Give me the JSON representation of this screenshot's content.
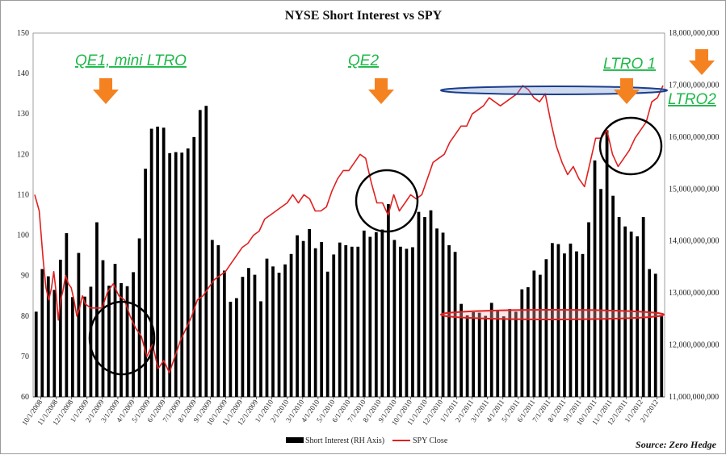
{
  "chart_data": {
    "type": "bar+line",
    "title": "NYSE Short Interest vs SPY",
    "source": "Source: Zero Hedge",
    "left_axis": {
      "ylim": [
        60,
        150
      ],
      "ticks": [
        "60",
        "70",
        "80",
        "90",
        "100",
        "110",
        "120",
        "130",
        "140",
        "150"
      ]
    },
    "right_axis": {
      "ylim": [
        11000000000,
        18000000000
      ],
      "ticks": [
        "11,000,000,000",
        "12,000,000,000",
        "13,000,000,000",
        "14,000,000,000",
        "15,000,000,000",
        "16,000,000,000",
        "17,000,000,000",
        "18,000,000,000"
      ]
    },
    "x_labels": [
      "10/1/2008",
      "11/1/2008",
      "12/1/2008",
      "1/1/2009",
      "2/1/2009",
      "3/1/2009",
      "4/1/2009",
      "5/1/2009",
      "6/1/2009",
      "7/1/2009",
      "8/1/2009",
      "9/1/2009",
      "10/1/2009",
      "11/1/2009",
      "12/1/2009",
      "1/1/2010",
      "2/1/2010",
      "3/1/2010",
      "4/1/2010",
      "5/1/2010",
      "6/1/2010",
      "7/1/2010",
      "8/1/2010",
      "9/1/2010",
      "10/1/2010",
      "11/1/2010",
      "12/1/2010",
      "1/1/2011",
      "2/1/2011",
      "3/1/2011",
      "4/1/2011",
      "5/1/2011",
      "6/1/2011",
      "7/1/2011",
      "8/1/2011",
      "9/1/2011",
      "10/1/2011",
      "11/1/2011",
      "12/1/2011",
      "1/1/2012",
      "2/1/2012"
    ],
    "series": [
      {
        "name": "Short Interest (RH Axis)",
        "axis": "right",
        "color": "#000000",
        "values": [
          12640000000,
          13460000000,
          13320000000,
          13060000000,
          13640000000,
          14150000000,
          12920000000,
          13770000000,
          12930000000,
          13120000000,
          14360000000,
          13630000000,
          13140000000,
          13560000000,
          13190000000,
          13130000000,
          13400000000,
          14050000000,
          15390000000,
          16160000000,
          16200000000,
          16180000000,
          15690000000,
          15710000000,
          15700000000,
          15780000000,
          16000000000,
          16520000000,
          16600000000,
          14020000000,
          13920000000,
          13430000000,
          12830000000,
          12900000000,
          13310000000,
          13480000000,
          13350000000,
          12840000000,
          13660000000,
          13510000000,
          13390000000,
          13550000000,
          13750000000,
          14110000000,
          14000000000,
          14230000000,
          13860000000,
          13980000000,
          13410000000,
          13740000000,
          13970000000,
          13920000000,
          13890000000,
          13890000000,
          14200000000,
          14080000000,
          14170000000,
          14220000000,
          14710000000,
          14020000000,
          13890000000,
          13850000000,
          13880000000,
          14560000000,
          14460000000,
          14590000000,
          14240000000,
          14160000000,
          13920000000,
          13790000000,
          12790000000,
          12570000000,
          12630000000,
          12620000000,
          12560000000,
          12810000000,
          12670000000,
          12550000000,
          12690000000,
          12640000000,
          13070000000,
          13110000000,
          13430000000,
          13350000000,
          13650000000,
          13960000000,
          13940000000,
          13760000000,
          13950000000,
          13800000000,
          13750000000,
          14360000000,
          15550000000,
          15000000000,
          16130000000,
          14870000000,
          14460000000,
          14280000000,
          14180000000,
          14090000000,
          14460000000,
          13460000000,
          13370000000,
          12550000000
        ]
      },
      {
        "name": "SPY Close",
        "axis": "left",
        "color": "#e02020",
        "points": [
          [
            0,
            110
          ],
          [
            0.8,
            106
          ],
          [
            1.5,
            94
          ],
          [
            2,
            87
          ],
          [
            2.5,
            84
          ],
          [
            3,
            87
          ],
          [
            3.4,
            91
          ],
          [
            3.8,
            86
          ],
          [
            4.2,
            79
          ],
          [
            4.6,
            84
          ],
          [
            5,
            86
          ],
          [
            5.5,
            90
          ],
          [
            6,
            88
          ],
          [
            6.5,
            87
          ],
          [
            7,
            84
          ],
          [
            7.5,
            80
          ],
          [
            8,
            82
          ],
          [
            8.5,
            85
          ],
          [
            9,
            83
          ],
          [
            10,
            82
          ],
          [
            11,
            82
          ],
          [
            12,
            82
          ],
          [
            13,
            86
          ],
          [
            14,
            88
          ],
          [
            15,
            85
          ],
          [
            16,
            84
          ],
          [
            17,
            80
          ],
          [
            18,
            77
          ],
          [
            19,
            75
          ],
          [
            20,
            70
          ],
          [
            21,
            73
          ],
          [
            22,
            67
          ],
          [
            23,
            69
          ],
          [
            24,
            66
          ],
          [
            25,
            70
          ],
          [
            26,
            74
          ],
          [
            27,
            77
          ],
          [
            28,
            80
          ],
          [
            29,
            84
          ],
          [
            30,
            85
          ],
          [
            31,
            87
          ],
          [
            32,
            89
          ],
          [
            33,
            90
          ],
          [
            34,
            91
          ],
          [
            35,
            93
          ],
          [
            36,
            95
          ],
          [
            37,
            97
          ],
          [
            38,
            98
          ],
          [
            39,
            100
          ],
          [
            40,
            101
          ],
          [
            41,
            104
          ],
          [
            42,
            105
          ],
          [
            43,
            106
          ],
          [
            44,
            107
          ],
          [
            45,
            108
          ],
          [
            46,
            110
          ],
          [
            47,
            108
          ],
          [
            48,
            110
          ],
          [
            49,
            109
          ],
          [
            50,
            106
          ],
          [
            51,
            106
          ],
          [
            52,
            107
          ],
          [
            53,
            111
          ],
          [
            54,
            114
          ],
          [
            55,
            116
          ],
          [
            56,
            116
          ],
          [
            57,
            118
          ],
          [
            58,
            120
          ],
          [
            59,
            119
          ],
          [
            60,
            113
          ],
          [
            61,
            108
          ],
          [
            62,
            108
          ],
          [
            63,
            105
          ],
          [
            64,
            110
          ],
          [
            65,
            106
          ],
          [
            66,
            108
          ],
          [
            67,
            110
          ],
          [
            68,
            109
          ],
          [
            69,
            110
          ],
          [
            70,
            114
          ],
          [
            71,
            118
          ],
          [
            72,
            119
          ],
          [
            73,
            120
          ],
          [
            74,
            123
          ],
          [
            75,
            125
          ],
          [
            76,
            127
          ],
          [
            77,
            127
          ],
          [
            78,
            130
          ],
          [
            79,
            131
          ],
          [
            80,
            132
          ],
          [
            81,
            134
          ],
          [
            82,
            133
          ],
          [
            83,
            132
          ],
          [
            84,
            133
          ],
          [
            85,
            134
          ],
          [
            86,
            135
          ],
          [
            87,
            137
          ],
          [
            88,
            136
          ],
          [
            89,
            134
          ],
          [
            90,
            133
          ],
          [
            91,
            135
          ],
          [
            92,
            128
          ],
          [
            93,
            122
          ],
          [
            94,
            118
          ],
          [
            95,
            115
          ],
          [
            96,
            117
          ],
          [
            97,
            114
          ],
          [
            98,
            112
          ],
          [
            99,
            118
          ],
          [
            100,
            124
          ],
          [
            101,
            124
          ],
          [
            102,
            126
          ],
          [
            103,
            120
          ],
          [
            104,
            117
          ],
          [
            105,
            119
          ],
          [
            106,
            121
          ],
          [
            107,
            124
          ],
          [
            108,
            126
          ],
          [
            109,
            128
          ],
          [
            110,
            133
          ],
          [
            111,
            134
          ],
          [
            112,
            137
          ]
        ]
      }
    ],
    "annotations": [
      {
        "text": "QE1, mini LTRO",
        "color": "#1fb84a"
      },
      {
        "text": "QE2",
        "color": "#1fb84a"
      },
      {
        "text": "LTRO 1",
        "color": "#1fb84a"
      },
      {
        "text": "LTRO2",
        "color": "#1fb84a"
      }
    ],
    "legend": {
      "position": "bottom"
    },
    "grid": false
  }
}
